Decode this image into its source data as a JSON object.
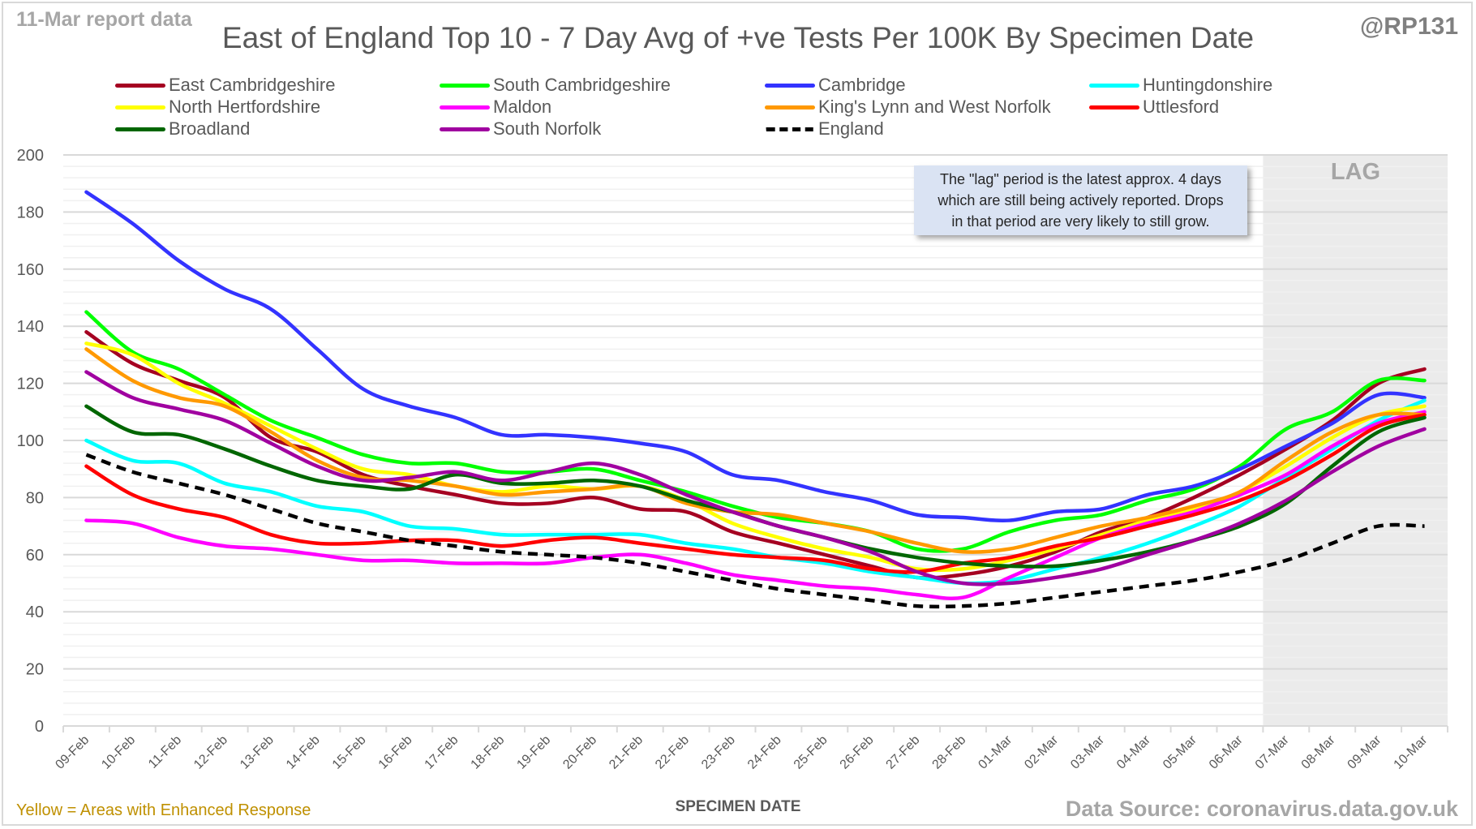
{
  "header": {
    "report_label": "11-Mar report data",
    "handle": "@RP131",
    "footnote": "Yellow = Areas with Enhanced Response",
    "source": "Data Source: coronavirus.data.gov.uk"
  },
  "annotation": {
    "lag_label": "LAG",
    "note_lines": [
      "The \"lag\" period is the latest approx. 4 days",
      "which are still being actively reported.  Drops",
      "in that period are very likely to still grow."
    ]
  },
  "chart_data": {
    "type": "line",
    "title": "East of England Top 10 - 7 Day Avg of +ve Tests Per 100K By Specimen Date",
    "xlabel": "SPECIMEN DATE",
    "ylabel": "",
    "ylim": [
      0,
      200
    ],
    "yticks": [
      0,
      20,
      40,
      60,
      80,
      100,
      120,
      140,
      160,
      180,
      200
    ],
    "grid": true,
    "legend_position": "top",
    "lag_region_start": "07-Mar",
    "x": [
      "09-Feb",
      "10-Feb",
      "11-Feb",
      "12-Feb",
      "13-Feb",
      "14-Feb",
      "15-Feb",
      "16-Feb",
      "17-Feb",
      "18-Feb",
      "19-Feb",
      "20-Feb",
      "21-Feb",
      "22-Feb",
      "23-Feb",
      "24-Feb",
      "25-Feb",
      "26-Feb",
      "27-Feb",
      "28-Feb",
      "01-Mar",
      "02-Mar",
      "03-Mar",
      "04-Mar",
      "05-Mar",
      "06-Mar",
      "07-Mar",
      "08-Mar",
      "09-Mar",
      "10-Mar"
    ],
    "series": [
      {
        "name": "East Cambridgeshire",
        "color": "#a50021",
        "dashed": false,
        "values": [
          138,
          127,
          121,
          115,
          101,
          96,
          88,
          84,
          81,
          78,
          78,
          80,
          76,
          75,
          68,
          64,
          60,
          56,
          52,
          53,
          56,
          61,
          68,
          73,
          80,
          88,
          97,
          107,
          120,
          125
        ]
      },
      {
        "name": "South Cambridgeshire",
        "color": "#00ff00",
        "dashed": false,
        "values": [
          145,
          131,
          125,
          116,
          107,
          101,
          95,
          92,
          92,
          89,
          89,
          90,
          86,
          82,
          77,
          73,
          71,
          68,
          62,
          62,
          68,
          72,
          74,
          79,
          83,
          91,
          104,
          110,
          121,
          121
        ]
      },
      {
        "name": "Cambridge",
        "color": "#3333ff",
        "dashed": false,
        "values": [
          187,
          176,
          163,
          153,
          146,
          132,
          118,
          112,
          108,
          102,
          102,
          101,
          99,
          96,
          88,
          86,
          82,
          79,
          74,
          73,
          72,
          75,
          76,
          81,
          84,
          90,
          98,
          106,
          116,
          115
        ]
      },
      {
        "name": "Huntingdonshire",
        "color": "#00ffff",
        "dashed": false,
        "values": [
          100,
          93,
          92,
          85,
          82,
          77,
          75,
          70,
          69,
          67,
          67,
          67,
          67,
          64,
          62,
          59,
          57,
          54,
          52,
          50,
          51,
          55,
          59,
          64,
          70,
          77,
          87,
          97,
          107,
          114
        ]
      },
      {
        "name": "North Hertfordshire",
        "color": "#ffff00",
        "dashed": false,
        "values": [
          134,
          130,
          120,
          113,
          105,
          97,
          90,
          88,
          84,
          82,
          84,
          83,
          84,
          79,
          71,
          66,
          62,
          59,
          55,
          55,
          58,
          62,
          67,
          72,
          76,
          82,
          91,
          101,
          109,
          112
        ]
      },
      {
        "name": "Maldon",
        "color": "#ff00ff",
        "dashed": false,
        "values": [
          72,
          71,
          66,
          63,
          62,
          60,
          58,
          58,
          57,
          57,
          57,
          59,
          60,
          57,
          53,
          51,
          49,
          48,
          46,
          45,
          52,
          59,
          66,
          71,
          75,
          81,
          88,
          98,
          106,
          110
        ]
      },
      {
        "name": "King's Lynn and West Norfolk",
        "color": "#ff9900",
        "dashed": false,
        "values": [
          132,
          121,
          115,
          112,
          103,
          93,
          87,
          86,
          84,
          81,
          82,
          83,
          84,
          78,
          75,
          74,
          71,
          68,
          64,
          61,
          62,
          66,
          70,
          73,
          77,
          82,
          93,
          103,
          109,
          109
        ]
      },
      {
        "name": "Uttlesford",
        "color": "#ff0000",
        "dashed": false,
        "values": [
          91,
          81,
          76,
          73,
          67,
          64,
          64,
          65,
          65,
          63,
          65,
          66,
          64,
          62,
          60,
          59,
          58,
          55,
          54,
          57,
          59,
          63,
          66,
          70,
          74,
          79,
          86,
          95,
          105,
          109
        ]
      },
      {
        "name": "Broadland",
        "color": "#006600",
        "dashed": false,
        "values": [
          112,
          103,
          102,
          97,
          91,
          86,
          84,
          83,
          88,
          85,
          85,
          86,
          84,
          79,
          75,
          70,
          66,
          62,
          59,
          57,
          56,
          56,
          58,
          61,
          65,
          70,
          78,
          91,
          103,
          108
        ]
      },
      {
        "name": "South Norfolk",
        "color": "#a000a0",
        "dashed": false,
        "values": [
          124,
          115,
          111,
          107,
          99,
          91,
          86,
          87,
          89,
          86,
          89,
          92,
          88,
          81,
          75,
          70,
          66,
          61,
          54,
          50,
          50,
          52,
          55,
          60,
          65,
          71,
          79,
          89,
          98,
          104
        ]
      },
      {
        "name": "England",
        "color": "#000000",
        "dashed": true,
        "values": [
          95,
          89,
          85,
          81,
          76,
          71,
          68,
          65,
          63,
          61,
          60,
          59,
          57,
          54,
          51,
          48,
          46,
          44,
          42,
          42,
          43,
          45,
          47,
          49,
          51,
          54,
          58,
          64,
          70,
          70
        ]
      }
    ]
  }
}
